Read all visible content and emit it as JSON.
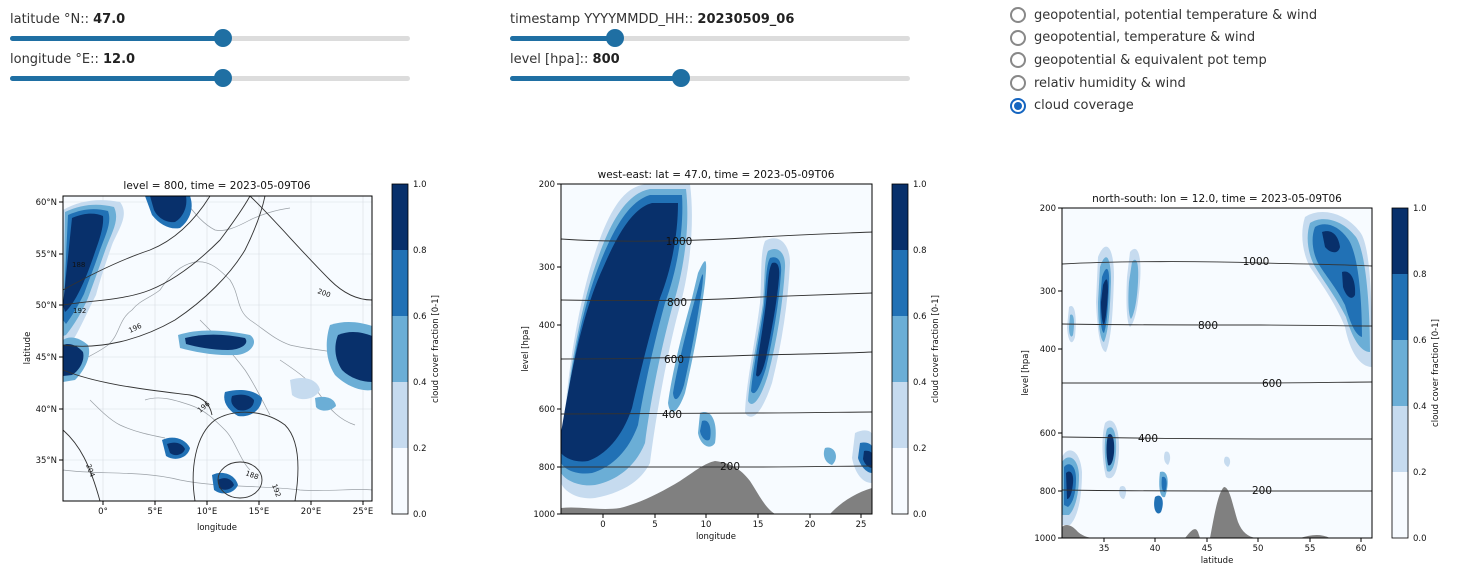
{
  "controls": {
    "sliders": [
      {
        "id": "latitude",
        "label": "latitude °N:: ",
        "value_text": "47.0",
        "fraction": 0.53
      },
      {
        "id": "longitude",
        "label": "longitude °E:: ",
        "value_text": "12.0",
        "fraction": 0.53
      },
      {
        "id": "timestamp",
        "label": "timestamp YYYYMMDD_HH:: ",
        "value_text": "20230509_06",
        "fraction": 0.26
      },
      {
        "id": "level",
        "label": "level [hpa]:: ",
        "value_text": "800",
        "fraction": 0.43
      }
    ],
    "radio_options": [
      {
        "label": "geopotential, potential temperature & wind",
        "selected": false
      },
      {
        "label": "geopotential, temperature & wind",
        "selected": false
      },
      {
        "label": "geopotential & equivalent pot temp",
        "selected": false
      },
      {
        "label": "relativ humidity & wind",
        "selected": false
      },
      {
        "label": "cloud coverage",
        "selected": true
      }
    ],
    "accent_color": "#1f6fa3",
    "radio_color": "#1565c0"
  },
  "plots": {
    "map": {
      "title": "level = 800, time = 2023-05-09T06",
      "xlabel": "longitude",
      "ylabel": "latitude",
      "xticks": [
        "0°",
        "5°E",
        "10°E",
        "15°E",
        "20°E",
        "25°E"
      ],
      "yticks": [
        "60°N",
        "55°N",
        "50°N",
        "45°N",
        "40°N",
        "35°N"
      ],
      "contour_labels": [
        "188",
        "192",
        "196",
        "200",
        "204",
        "196",
        "188",
        "192"
      ]
    },
    "west_east": {
      "title": "west-east: lat = 47.0, time = 2023-05-09T06",
      "xlabel": "longitude",
      "ylabel": "level [hpa]",
      "xticks": [
        "0",
        "5",
        "10",
        "15",
        "20",
        "25"
      ],
      "yticks": [
        "200",
        "300",
        "400",
        "600",
        "800",
        "1000"
      ],
      "contour_labels": [
        "1000",
        "800",
        "600",
        "400",
        "200"
      ]
    },
    "north_south": {
      "title": "north-south: lon = 12.0, time = 2023-05-09T06",
      "xlabel": "latitude",
      "ylabel": "level [hpa]",
      "xticks": [
        "35",
        "40",
        "45",
        "50",
        "55",
        "60"
      ],
      "yticks": [
        "200",
        "300",
        "400",
        "600",
        "800",
        "1000"
      ],
      "contour_labels": [
        "1000",
        "800",
        "600",
        "400",
        "200"
      ]
    },
    "colorbar": {
      "label": "cloud cover fraction [0-1]",
      "ticks": [
        "1.0",
        "0.8",
        "0.6",
        "0.4",
        "0.2",
        "0.0"
      ],
      "colors": [
        "#08306b",
        "#2171b5",
        "#6baed6",
        "#c6dbef",
        "#f7fbff"
      ]
    }
  }
}
